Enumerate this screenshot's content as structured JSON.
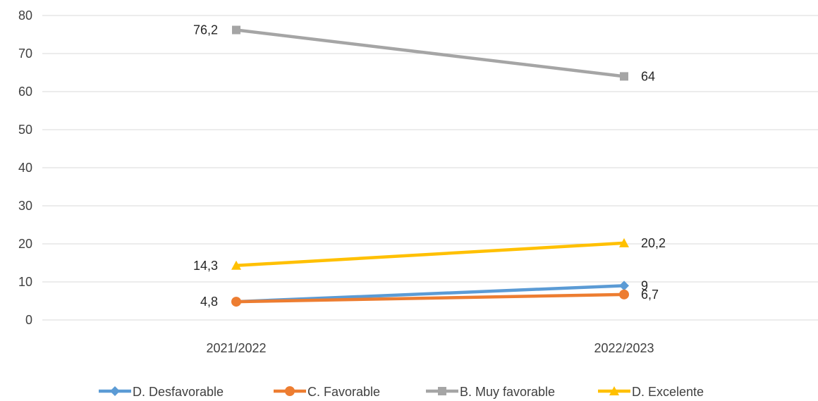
{
  "chart_data": {
    "type": "line",
    "title": "",
    "xlabel": "",
    "ylabel": "",
    "categories": [
      "2021/2022",
      "2022/2023"
    ],
    "ylim": [
      0,
      80
    ],
    "yticks": [
      0,
      10,
      20,
      30,
      40,
      50,
      60,
      70,
      80
    ],
    "grid": "horizontal",
    "legend_position": "bottom",
    "series": [
      {
        "name": "D. Desfavorable",
        "values": [
          4.8,
          9
        ],
        "labels": [
          "",
          "9"
        ],
        "color": "#5B9BD5",
        "marker": "diamond"
      },
      {
        "name": "C. Favorable",
        "values": [
          4.8,
          6.7
        ],
        "labels": [
          "4,8",
          "6,7"
        ],
        "color": "#ED7D31",
        "marker": "circle"
      },
      {
        "name": "B. Muy favorable",
        "values": [
          76.2,
          64
        ],
        "labels": [
          "76,2",
          "64"
        ],
        "color": "#A5A5A5",
        "marker": "square"
      },
      {
        "name": "D. Excelente",
        "values": [
          14.3,
          20.2
        ],
        "labels": [
          "14,3",
          "20,2"
        ],
        "color": "#FFC000",
        "marker": "triangle"
      }
    ]
  }
}
